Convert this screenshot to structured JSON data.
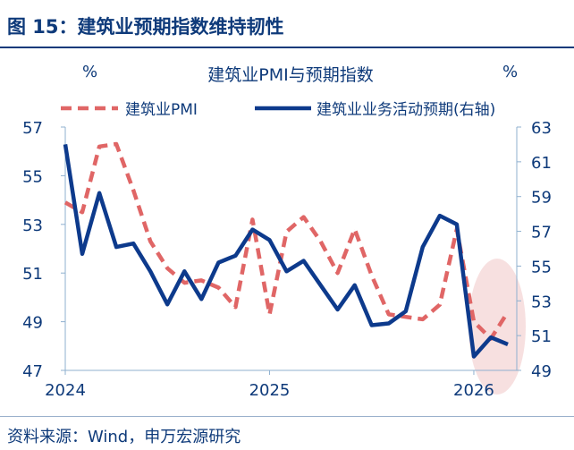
{
  "figure_title": "图 15：建筑业预期指数维持韧性",
  "source": "资料来源：Wind，申万宏源研究",
  "chart_data": {
    "type": "line",
    "title": "建筑业PMI与预期指数",
    "left_unit": "%",
    "right_unit": "%",
    "x_ticks": [
      "2024",
      "2025",
      "2026"
    ],
    "x_start": "2024-01",
    "x_end": "2026-03",
    "left_ylim": [
      47,
      57
    ],
    "left_ticks": [
      "57",
      "55",
      "53",
      "51",
      "49",
      "47"
    ],
    "right_ylim": [
      49,
      63
    ],
    "right_ticks": [
      "63",
      "61",
      "59",
      "57",
      "55",
      "53",
      "51",
      "49"
    ],
    "series": [
      {
        "name": "建筑业PMI",
        "axis": "left",
        "style": "dashed",
        "color": "#e06666",
        "values": [
          53.9,
          53.5,
          56.2,
          56.3,
          54.4,
          52.3,
          51.2,
          50.6,
          50.7,
          50.4,
          49.6,
          53.2,
          49.3,
          52.7,
          53.3,
          52.3,
          51.0,
          52.8,
          50.9,
          49.3,
          49.2,
          49.1,
          49.7,
          52.8,
          49.0,
          48.3,
          49.4
        ]
      },
      {
        "name": "建筑业业务活动预期(右轴)",
        "axis": "right",
        "style": "solid",
        "color": "#0d3a8c",
        "values": [
          62.0,
          55.7,
          59.2,
          56.1,
          56.3,
          54.7,
          52.8,
          54.7,
          53.1,
          55.2,
          55.6,
          57.1,
          56.5,
          54.7,
          55.3,
          53.9,
          52.5,
          53.9,
          51.6,
          51.7,
          52.4,
          56.1,
          57.9,
          57.4,
          49.8,
          50.9,
          50.5
        ]
      }
    ],
    "highlight": "latest months (2026)",
    "legend_position": "top"
  }
}
